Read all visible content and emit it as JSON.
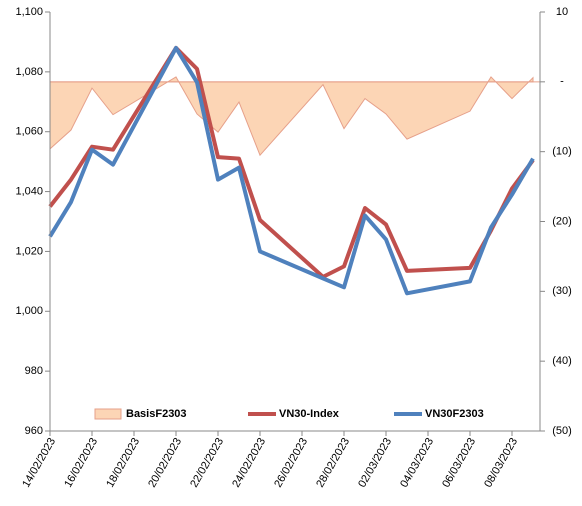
{
  "chart_data": {
    "type": "line",
    "x": [
      "14/02/2023",
      "15/02/2023",
      "16/02/2023",
      "17/02/2023",
      "20/02/2023",
      "21/02/2023",
      "22/02/2023",
      "23/02/2023",
      "24/02/2023",
      "27/02/2023",
      "28/02/2023",
      "01/03/2023",
      "02/03/2023",
      "03/03/2023",
      "06/03/2023",
      "07/03/2023",
      "08/03/2023",
      "09/03/2023"
    ],
    "xlim": [
      "14/02/2023",
      "09/03/2023"
    ],
    "xticks": [
      "14/02/2023",
      "16/02/2023",
      "18/02/2023",
      "20/02/2023",
      "22/02/2023",
      "24/02/2023",
      "26/02/2023",
      "28/02/2023",
      "02/03/2023",
      "04/03/2023",
      "06/03/2023",
      "08/03/2023"
    ],
    "ylim": [
      960,
      1100
    ],
    "yticks": [
      {
        "value": 960,
        "label": "960"
      },
      {
        "value": 980,
        "label": "980"
      },
      {
        "value": 1000,
        "label": "1,000"
      },
      {
        "value": 1020,
        "label": "1,020"
      },
      {
        "value": 1040,
        "label": "1,040"
      },
      {
        "value": 1060,
        "label": "1,060"
      },
      {
        "value": 1080,
        "label": "1,080"
      },
      {
        "value": 1100,
        "label": "1,100"
      }
    ],
    "y2lim": [
      -50,
      10
    ],
    "y2ticks": [
      {
        "value": -50,
        "label": "(50)"
      },
      {
        "value": -40,
        "label": "(40)"
      },
      {
        "value": -30,
        "label": "(30)"
      },
      {
        "value": -20,
        "label": "(20)"
      },
      {
        "value": -10,
        "label": "(10)"
      },
      {
        "value": 0,
        "label": "-"
      },
      10
    ],
    "legend": "bottom",
    "series": [
      {
        "name": "BasisF2303",
        "type": "area",
        "axis": "y2",
        "color": "#fcd5b5",
        "line_color": "#e6a08a",
        "values": [
          -9.6,
          -6.9,
          -0.9,
          -4.7,
          0.7,
          -4.6,
          -7.2,
          -2.9,
          -10.5,
          -0.4,
          -6.7,
          -2.4,
          -4.6,
          -8.2,
          -4.2,
          0.7,
          -2.4,
          0.6
        ]
      },
      {
        "name": "VN30-Index",
        "type": "line",
        "color": "#c0504d",
        "values": [
          1035,
          1044,
          1055,
          1054,
          1088,
          1081,
          1051.5,
          1051,
          1030.5,
          1011.5,
          1015,
          1034.5,
          1029,
          1013.5,
          1014.5,
          1027,
          1041,
          1050.5
        ]
      },
      {
        "name": "VN30F2303",
        "type": "line",
        "color": "#4f81bd",
        "values": [
          1025,
          1036.5,
          1054,
          1049,
          1088,
          1076.5,
          1044,
          1048,
          1020,
          1011,
          1008,
          1032,
          1024,
          1006,
          1010,
          1028,
          1039,
          1051
        ]
      }
    ]
  }
}
